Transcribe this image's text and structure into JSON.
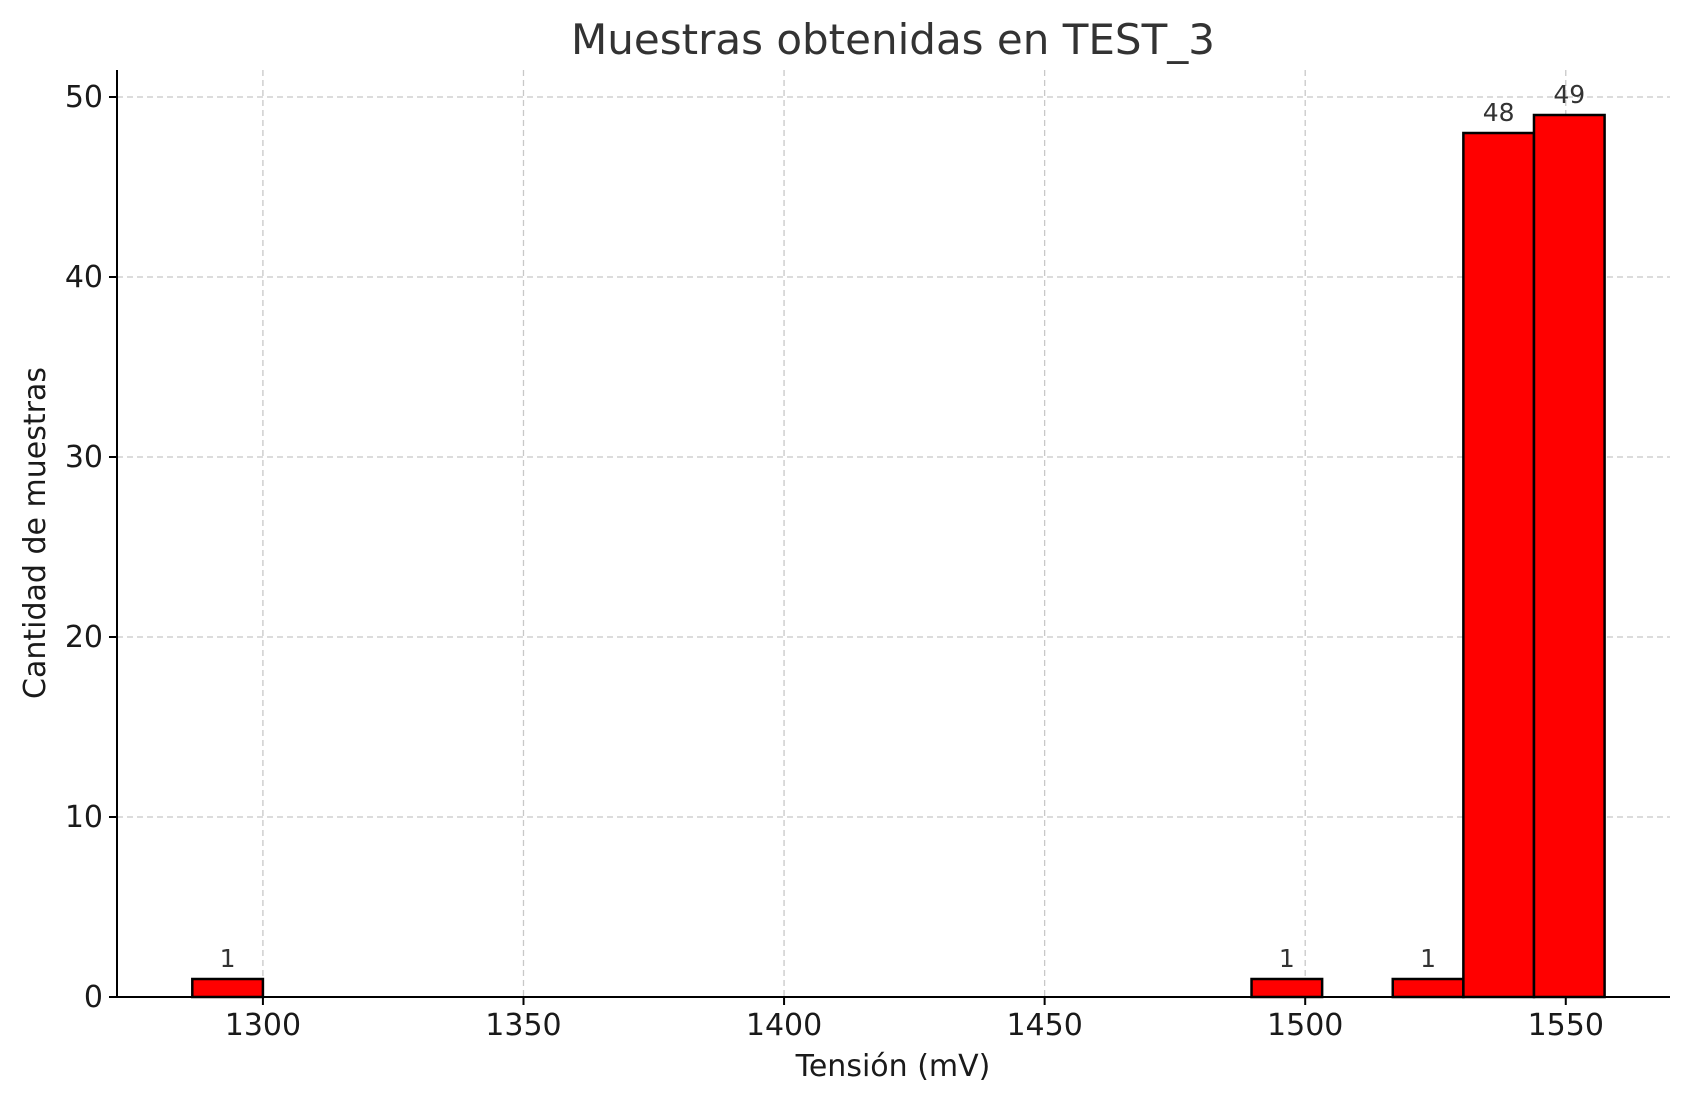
{
  "chart_data": {
    "type": "bar",
    "title": "Muestras obtenidas en TEST_3",
    "xlabel": "Tensión (mV)",
    "ylabel": "Cantidad de muestras",
    "xlim": [
      1272,
      1570
    ],
    "ylim": [
      0,
      51.5
    ],
    "xticks": [
      1300,
      1350,
      1400,
      1450,
      1500,
      1550
    ],
    "yticks": [
      0,
      10,
      20,
      30,
      40,
      50
    ],
    "grid": true,
    "bin_width": 13.55,
    "bars": [
      {
        "x_start": 1286.45,
        "x_end": 1300.0,
        "count": 1,
        "label": "1"
      },
      {
        "x_start": 1489.7,
        "x_end": 1503.25,
        "count": 1,
        "label": "1"
      },
      {
        "x_start": 1516.8,
        "x_end": 1530.35,
        "count": 1,
        "label": "1"
      },
      {
        "x_start": 1530.35,
        "x_end": 1543.9,
        "count": 48,
        "label": "48"
      },
      {
        "x_start": 1543.9,
        "x_end": 1557.45,
        "count": 49,
        "label": "49"
      }
    ],
    "colors": {
      "bar_fill": "#ff0000",
      "bar_edge": "#000000",
      "grid": "#c8c8c8"
    }
  }
}
